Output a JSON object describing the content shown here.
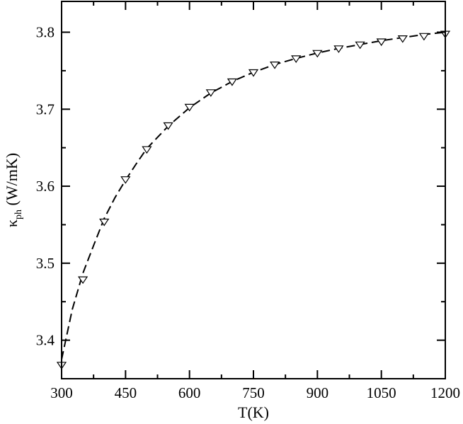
{
  "chart_data": {
    "type": "line",
    "title": "",
    "xlabel": "T(K)",
    "ylabel": {
      "symbol": "κ",
      "subscript": "ph",
      "unit": " (W/mK)"
    },
    "xlim": [
      300,
      1200
    ],
    "ylim": [
      3.35,
      3.84
    ],
    "xticks": [
      300,
      450,
      600,
      750,
      900,
      1050,
      1200
    ],
    "xtick_labels": [
      "300",
      "450",
      "600",
      "750",
      "900",
      "1050",
      "1200"
    ],
    "yticks": [
      3.4,
      3.5,
      3.6,
      3.7,
      3.8
    ],
    "ytick_labels": [
      "3.4",
      "3.5",
      "3.6",
      "3.7",
      "3.8"
    ],
    "grid": false,
    "series": [
      {
        "style": "markers",
        "marker": "down-triangle-open",
        "color": "#000000",
        "x": [
          300,
          350,
          400,
          450,
          500,
          550,
          600,
          650,
          700,
          750,
          800,
          850,
          900,
          950,
          1000,
          1050,
          1100,
          1150,
          1200
        ],
        "y": [
          3.368,
          3.479,
          3.554,
          3.609,
          3.648,
          3.679,
          3.703,
          3.722,
          3.736,
          3.748,
          3.758,
          3.766,
          3.773,
          3.779,
          3.784,
          3.788,
          3.792,
          3.795,
          3.798
        ]
      },
      {
        "style": "dashed-line",
        "color": "#000000",
        "x": [
          300,
          325,
          350,
          375,
          400,
          425,
          450,
          475,
          500,
          550,
          600,
          650,
          700,
          750,
          800,
          850,
          900,
          950,
          1000,
          1050,
          1100,
          1150,
          1200
        ],
        "y": [
          3.375,
          3.44,
          3.487,
          3.523,
          3.558,
          3.585,
          3.608,
          3.629,
          3.649,
          3.678,
          3.702,
          3.721,
          3.736,
          3.748,
          3.758,
          3.766,
          3.773,
          3.779,
          3.784,
          3.789,
          3.793,
          3.797,
          3.8
        ]
      }
    ]
  }
}
